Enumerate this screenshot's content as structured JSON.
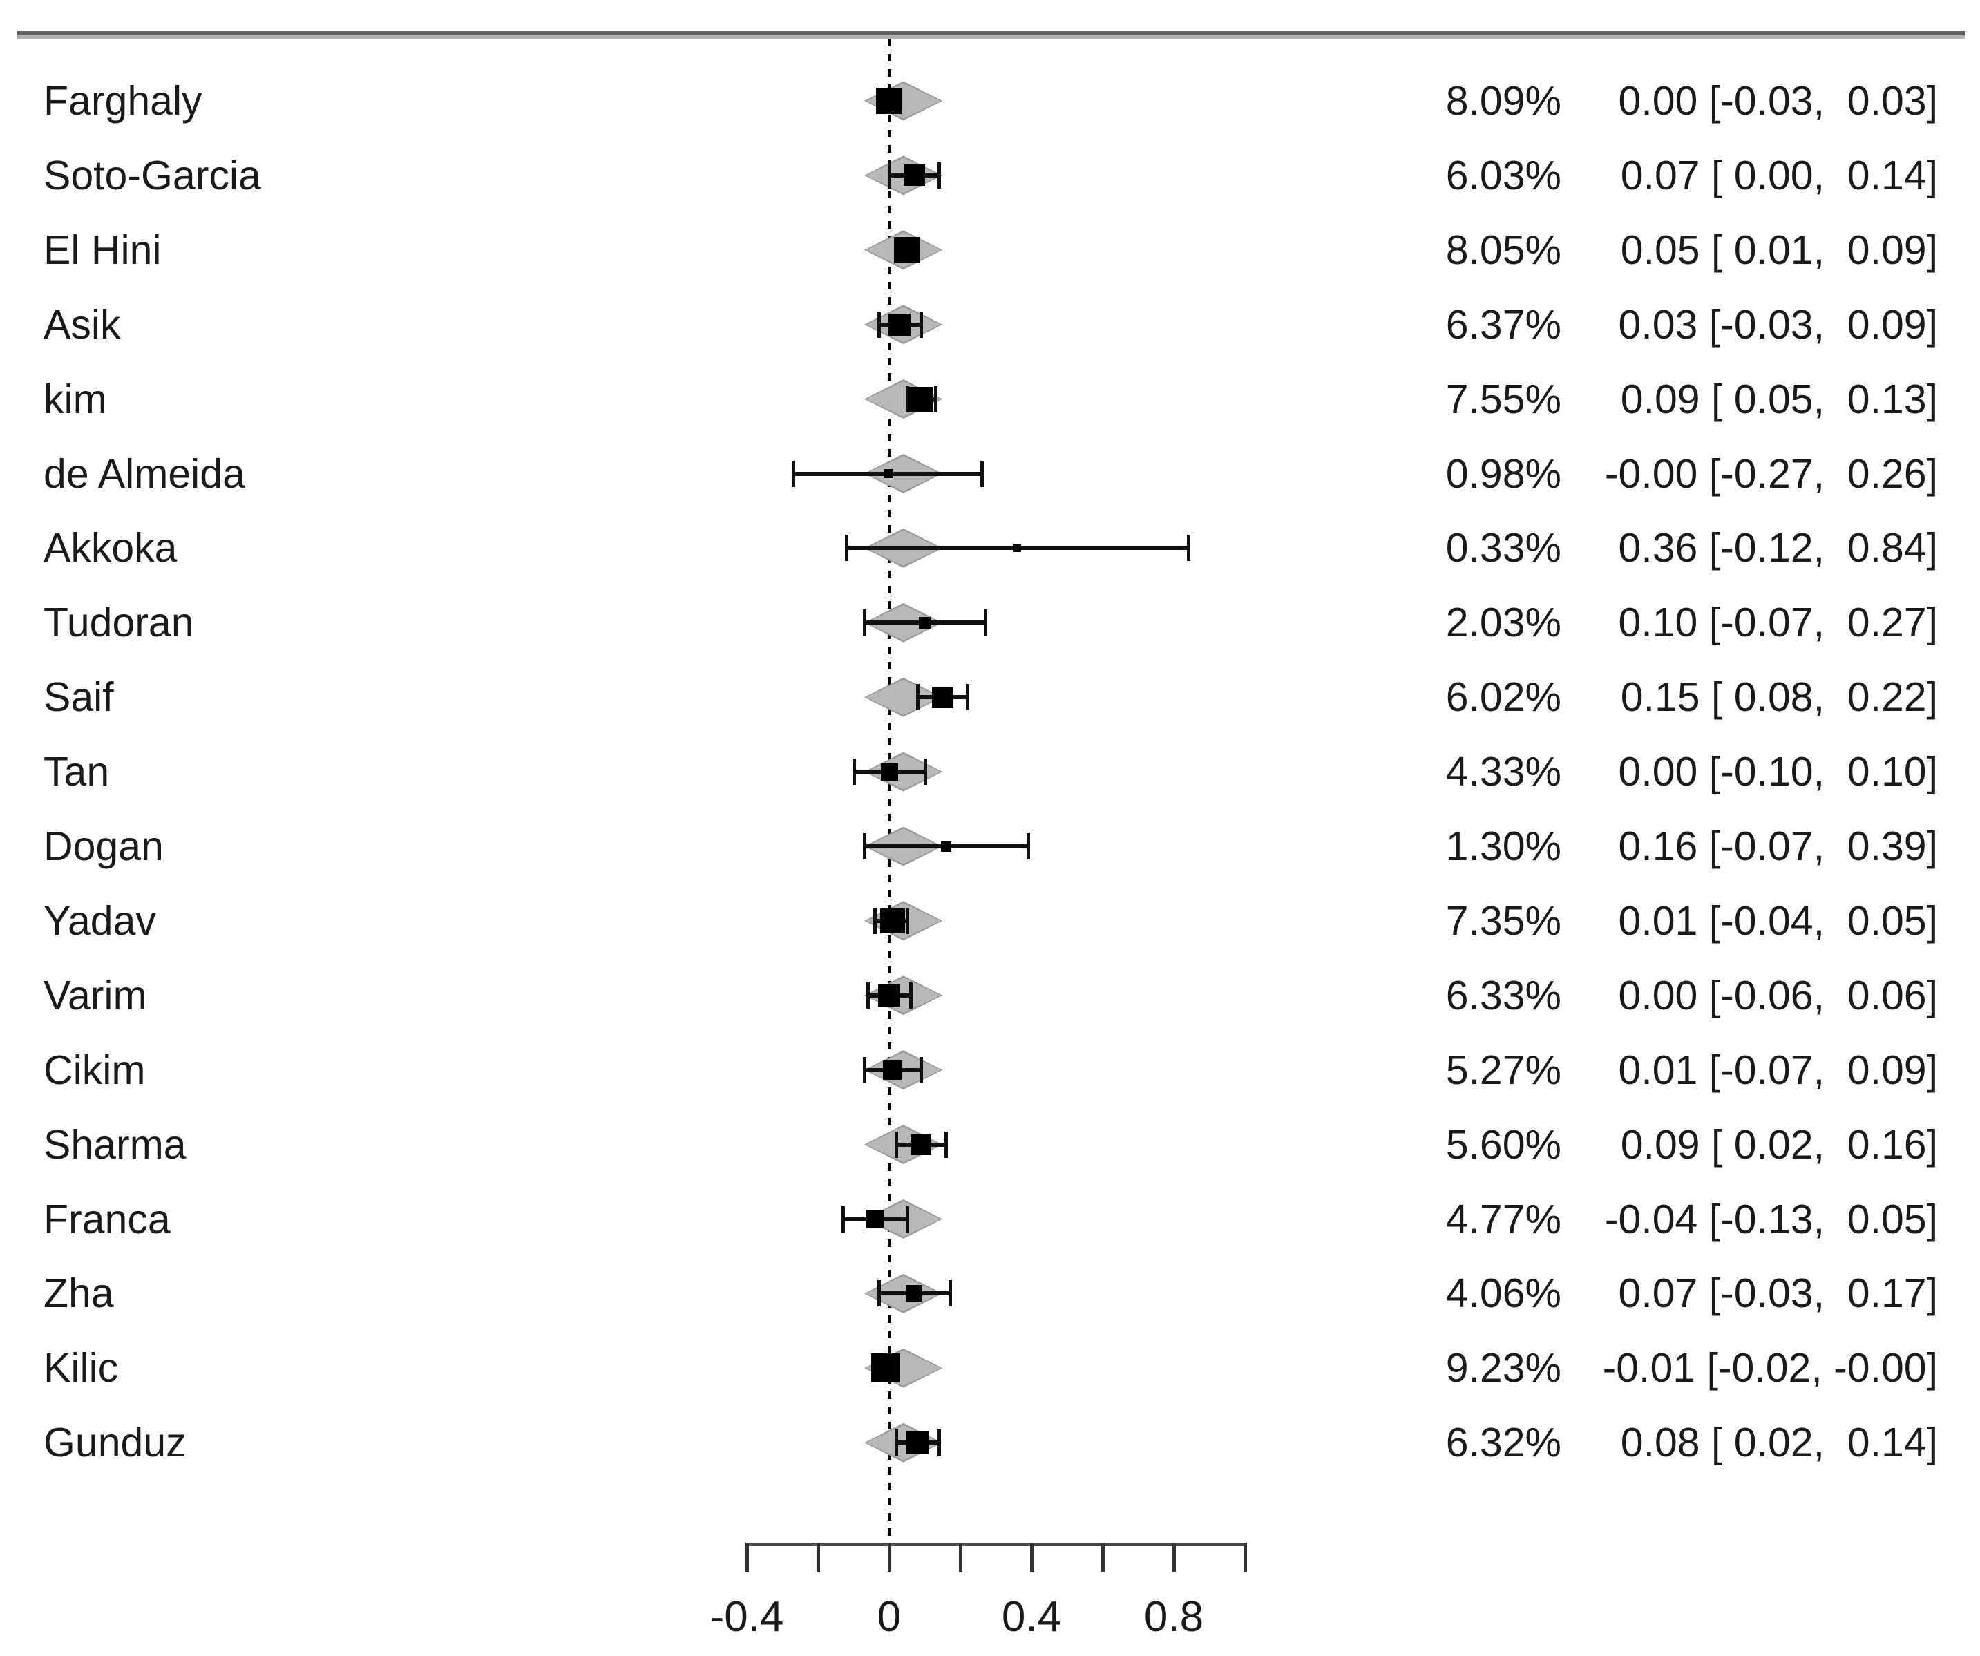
{
  "chart_data": {
    "type": "forest",
    "title": "",
    "x_axis": {
      "range": [
        -0.4,
        1.0
      ],
      "ticks": [
        -0.4,
        -0.2,
        0,
        0.2,
        0.4,
        0.6,
        0.8,
        1.0
      ],
      "labeled_ticks": [
        {
          "value": -0.4,
          "label": "-0.4"
        },
        {
          "value": 0,
          "label": "0"
        },
        {
          "value": 0.4,
          "label": "0.4"
        },
        {
          "value": 0.8,
          "label": "0.8"
        }
      ],
      "zero_reference_line": 0,
      "grid": false
    },
    "overall_diamond": {
      "lo": -0.07,
      "center": 0.04,
      "hi": 0.15
    },
    "rows": [
      {
        "study": "Farghaly",
        "weight": "8.09%",
        "weight_value": 8.09,
        "estimate": 0.0,
        "ci_lower": -0.03,
        "ci_upper": 0.03,
        "effect": "0.00 [-0.03,  0.03]"
      },
      {
        "study": "Soto-Garcia",
        "weight": "6.03%",
        "weight_value": 6.03,
        "estimate": 0.07,
        "ci_lower": 0.0,
        "ci_upper": 0.14,
        "effect": "0.07 [ 0.00,  0.14]"
      },
      {
        "study": "El Hini",
        "weight": "8.05%",
        "weight_value": 8.05,
        "estimate": 0.05,
        "ci_lower": 0.01,
        "ci_upper": 0.09,
        "effect": "0.05 [ 0.01,  0.09]"
      },
      {
        "study": "Asik",
        "weight": "6.37%",
        "weight_value": 6.37,
        "estimate": 0.03,
        "ci_lower": -0.03,
        "ci_upper": 0.09,
        "effect": "0.03 [-0.03,  0.09]"
      },
      {
        "study": "kim",
        "weight": "7.55%",
        "weight_value": 7.55,
        "estimate": 0.09,
        "ci_lower": 0.05,
        "ci_upper": 0.13,
        "effect": "0.09 [ 0.05,  0.13]"
      },
      {
        "study": "de Almeida",
        "weight": "0.98%",
        "weight_value": 0.98,
        "estimate": -0.001,
        "ci_lower": -0.27,
        "ci_upper": 0.26,
        "effect": "-0.00 [-0.27,  0.26]"
      },
      {
        "study": "Akkoka",
        "weight": "0.33%",
        "weight_value": 0.33,
        "estimate": 0.36,
        "ci_lower": -0.12,
        "ci_upper": 0.84,
        "effect": "0.36 [-0.12,  0.84]"
      },
      {
        "study": "Tudoran",
        "weight": "2.03%",
        "weight_value": 2.03,
        "estimate": 0.1,
        "ci_lower": -0.07,
        "ci_upper": 0.27,
        "effect": "0.10 [-0.07,  0.27]"
      },
      {
        "study": "Saif",
        "weight": "6.02%",
        "weight_value": 6.02,
        "estimate": 0.15,
        "ci_lower": 0.08,
        "ci_upper": 0.22,
        "effect": "0.15 [ 0.08,  0.22]"
      },
      {
        "study": "Tan",
        "weight": "4.33%",
        "weight_value": 4.33,
        "estimate": 0.0,
        "ci_lower": -0.1,
        "ci_upper": 0.1,
        "effect": "0.00 [-0.10,  0.10]"
      },
      {
        "study": "Dogan",
        "weight": "1.30%",
        "weight_value": 1.3,
        "estimate": 0.16,
        "ci_lower": -0.07,
        "ci_upper": 0.39,
        "effect": "0.16 [-0.07,  0.39]"
      },
      {
        "study": "Yadav",
        "weight": "7.35%",
        "weight_value": 7.35,
        "estimate": 0.01,
        "ci_lower": -0.04,
        "ci_upper": 0.05,
        "effect": "0.01 [-0.04,  0.05]"
      },
      {
        "study": "Varim",
        "weight": "6.33%",
        "weight_value": 6.33,
        "estimate": 0.0,
        "ci_lower": -0.06,
        "ci_upper": 0.06,
        "effect": "0.00 [-0.06,  0.06]"
      },
      {
        "study": "Cikim",
        "weight": "5.27%",
        "weight_value": 5.27,
        "estimate": 0.01,
        "ci_lower": -0.07,
        "ci_upper": 0.09,
        "effect": "0.01 [-0.07,  0.09]"
      },
      {
        "study": "Sharma",
        "weight": "5.60%",
        "weight_value": 5.6,
        "estimate": 0.09,
        "ci_lower": 0.02,
        "ci_upper": 0.16,
        "effect": "0.09 [ 0.02,  0.16]"
      },
      {
        "study": "Franca",
        "weight": "4.77%",
        "weight_value": 4.77,
        "estimate": -0.04,
        "ci_lower": -0.13,
        "ci_upper": 0.05,
        "effect": "-0.04 [-0.13,  0.05]"
      },
      {
        "study": "Zha",
        "weight": "4.06%",
        "weight_value": 4.06,
        "estimate": 0.07,
        "ci_lower": -0.03,
        "ci_upper": 0.17,
        "effect": "0.07 [-0.03,  0.17]"
      },
      {
        "study": "Kilic",
        "weight": "9.23%",
        "weight_value": 9.23,
        "estimate": -0.01,
        "ci_lower": -0.02,
        "ci_upper": -0.001,
        "effect": "-0.01 [-0.02, -0.00]"
      },
      {
        "study": "Gunduz",
        "weight": "6.32%",
        "weight_value": 6.32,
        "estimate": 0.08,
        "ci_lower": 0.02,
        "ci_upper": 0.14,
        "effect": "0.08 [ 0.02,  0.14]"
      }
    ]
  },
  "colors": {
    "marker": "#000000",
    "ci": "#111111",
    "diamond_fill": "#b9b9b9",
    "diamond_edge": "#9a9a9a",
    "axis_line": "#4d4d4d",
    "tick": "#333333",
    "text": "#1a1a1a"
  }
}
